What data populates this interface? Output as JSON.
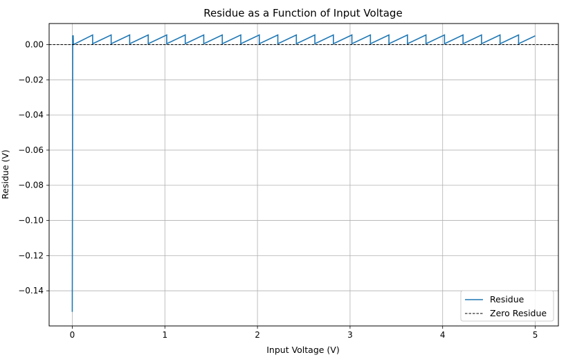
{
  "chart_data": {
    "type": "line",
    "title": "Residue as a Function of Input Voltage",
    "xlabel": "Input Voltage (V)",
    "ylabel": "Residue (V)",
    "xlim": [
      -0.25,
      5.25
    ],
    "ylim": [
      -0.16,
      0.012
    ],
    "grid": true,
    "legend_position": "lower-right",
    "x_ticks": [
      0,
      1,
      2,
      3,
      4,
      5
    ],
    "x_tick_labels": [
      "0",
      "1",
      "2",
      "3",
      "4",
      "5"
    ],
    "y_ticks": [
      0.0,
      -0.02,
      -0.04,
      -0.06,
      -0.08,
      -0.1,
      -0.12,
      -0.14
    ],
    "y_tick_labels": [
      "0.00",
      "−0.02",
      "−0.04",
      "−0.06",
      "−0.08",
      "−0.10",
      "−0.12",
      "−0.14"
    ],
    "series": [
      {
        "name": "Residue",
        "color": "#1f77b4",
        "style": "solid",
        "x": [
          0,
          0.005,
          0.01,
          0.012,
          0.22,
          0.22,
          0.42,
          0.42,
          0.62,
          0.62,
          0.82,
          0.82,
          1.02,
          1.02,
          1.22,
          1.22,
          1.42,
          1.42,
          1.62,
          1.62,
          1.82,
          1.82,
          2.02,
          2.02,
          2.22,
          2.22,
          2.42,
          2.42,
          2.62,
          2.62,
          2.82,
          2.82,
          3.02,
          3.02,
          3.22,
          3.22,
          3.42,
          3.42,
          3.62,
          3.62,
          3.82,
          3.82,
          4.02,
          4.02,
          4.22,
          4.22,
          4.42,
          4.42,
          4.62,
          4.62,
          4.82,
          4.82,
          5.0
        ],
        "y": [
          -0.152,
          0.005,
          0.005,
          0.0,
          0.0055,
          0.0005,
          0.0055,
          0.0005,
          0.0055,
          0.0005,
          0.0055,
          0.0005,
          0.0055,
          0.0005,
          0.0055,
          0.0005,
          0.0055,
          0.0005,
          0.0055,
          0.0005,
          0.0055,
          0.0005,
          0.0055,
          0.0005,
          0.0055,
          0.0005,
          0.0055,
          0.0005,
          0.0055,
          0.0005,
          0.0055,
          0.0005,
          0.0055,
          0.0005,
          0.0055,
          0.0005,
          0.0055,
          0.0005,
          0.0055,
          0.0005,
          0.0055,
          0.0005,
          0.0055,
          0.0005,
          0.0055,
          0.0005,
          0.0055,
          0.0005,
          0.0055,
          0.0005,
          0.0055,
          0.0005,
          0.005
        ]
      },
      {
        "name": "Zero Residue",
        "color": "#000000",
        "style": "dashed",
        "x": [
          -0.25,
          5.25
        ],
        "y": [
          0,
          0
        ]
      }
    ]
  }
}
